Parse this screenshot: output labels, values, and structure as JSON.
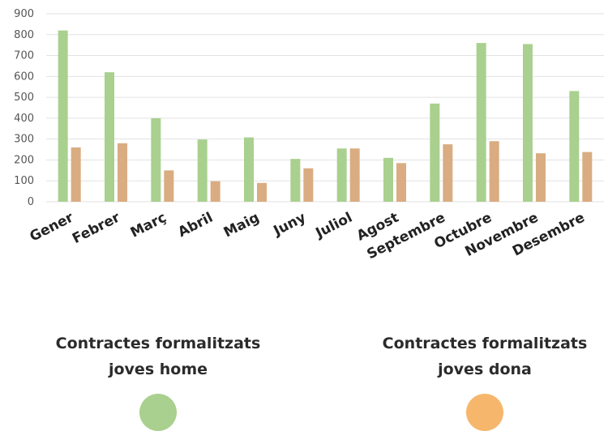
{
  "chart_data": {
    "type": "bar",
    "categories": [
      "Gener",
      "Febrer",
      "Març",
      "Abril",
      "Maig",
      "Juny",
      "Juliol",
      "Agost",
      "Septembre",
      "Octubre",
      "Novembre",
      "Desembre"
    ],
    "series": [
      {
        "name": "Contractes formalitzats joves home",
        "color": "#a9d08e",
        "values": [
          820,
          620,
          400,
          298,
          308,
          205,
          255,
          210,
          470,
          760,
          755,
          530
        ]
      },
      {
        "name": "Contractes formalitzats joves dona",
        "color": "#d9ac82",
        "values": [
          260,
          280,
          150,
          98,
          90,
          160,
          255,
          185,
          275,
          290,
          232,
          238
        ]
      }
    ],
    "ylim": [
      0,
      900
    ],
    "yticks": [
      0,
      100,
      200,
      300,
      400,
      500,
      600,
      700,
      800,
      900
    ],
    "grid": true,
    "legend_position": "bottom"
  },
  "legend": [
    {
      "line1": "Contractes formalitzats",
      "line2": "joves home",
      "dot_color": "#a9d08e"
    },
    {
      "line1": "Contractes formalitzats",
      "line2": "joves dona",
      "dot_color": "#f6b66b"
    }
  ]
}
